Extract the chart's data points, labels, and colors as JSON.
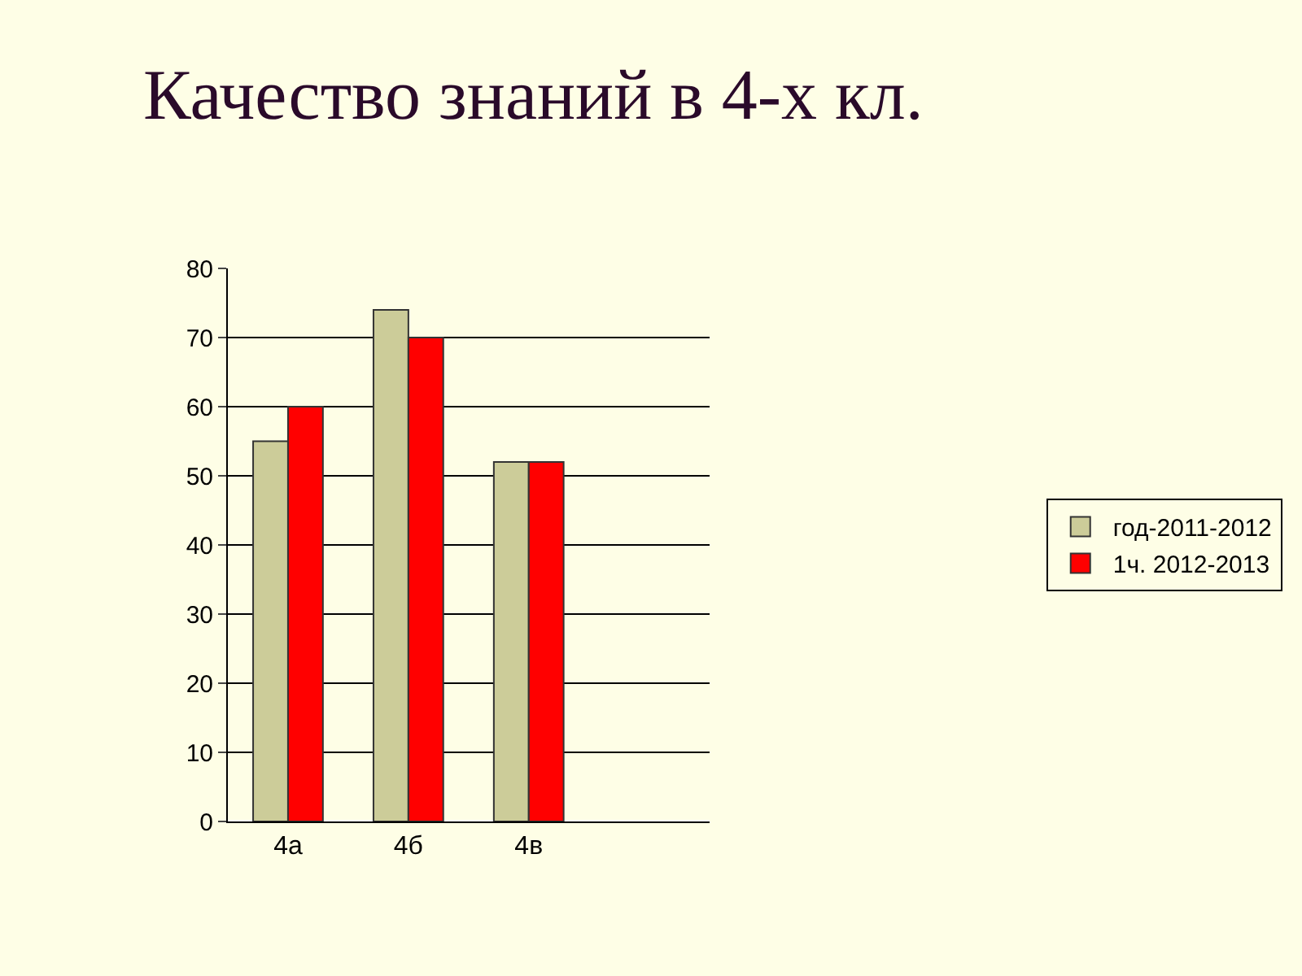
{
  "chart_data": {
    "type": "bar",
    "title": "Качество знаний в 4-х кл.",
    "categories": [
      "4а",
      "4б",
      "4в",
      null
    ],
    "series": [
      {
        "name": "год-2011-2012",
        "color": "#cccc99",
        "values": [
          55,
          74,
          52,
          null
        ]
      },
      {
        "name": "1ч. 2012-2013",
        "color": "#ff0000",
        "values": [
          60,
          70,
          52,
          null
        ]
      }
    ],
    "ylim": [
      0,
      80
    ],
    "yticks": [
      0,
      10,
      20,
      30,
      40,
      50,
      60,
      70,
      80
    ],
    "grid": "y",
    "legend": "right"
  }
}
